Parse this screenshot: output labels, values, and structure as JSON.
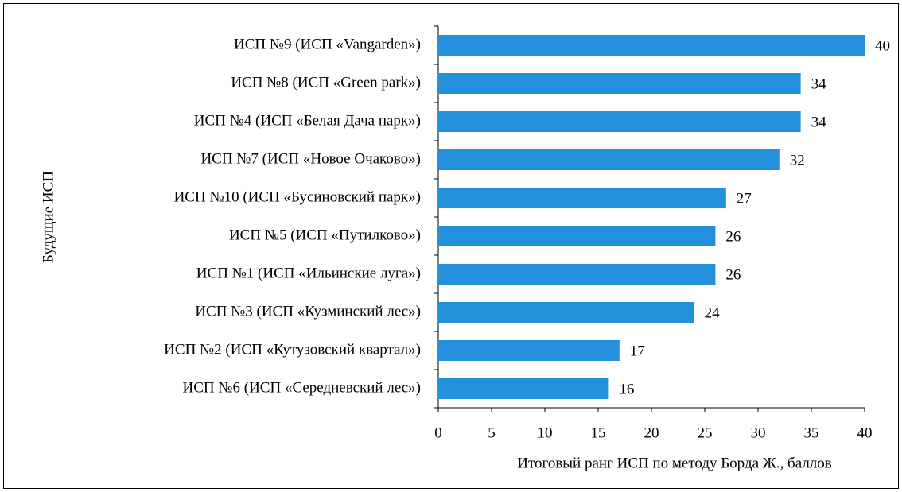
{
  "chart_data": {
    "type": "bar",
    "orientation": "horizontal",
    "categories": [
      "ИСП №9 (ИСП «Vangarden»)",
      "ИСП №8 (ИСП «Green park»)",
      "ИСП №4 (ИСП «Белая Дача парк»)",
      "ИСП №7 (ИСП «Новое Очаково»)",
      "ИСП №10 (ИСП «Бусиновский парк»)",
      "ИСП №5 (ИСП «Путилково»)",
      "ИСП №1 (ИСП «Ильинские луга»)",
      "ИСП №3 (ИСП «Кузминский лес»)",
      "ИСП №2 (ИСП «Кутузовский квартал»)",
      "ИСП №6 (ИСП «Середневский лес»)"
    ],
    "values": [
      40,
      34,
      34,
      32,
      27,
      26,
      26,
      24,
      17,
      16
    ],
    "color": "#2490db",
    "xlabel": "Итоговый ранг ИСП по методу Борда Ж., баллов",
    "ylabel": "Будущие ИСП",
    "xlim": [
      0,
      40
    ],
    "xticks": [
      0,
      5,
      10,
      15,
      20,
      25,
      30,
      35,
      40
    ]
  }
}
